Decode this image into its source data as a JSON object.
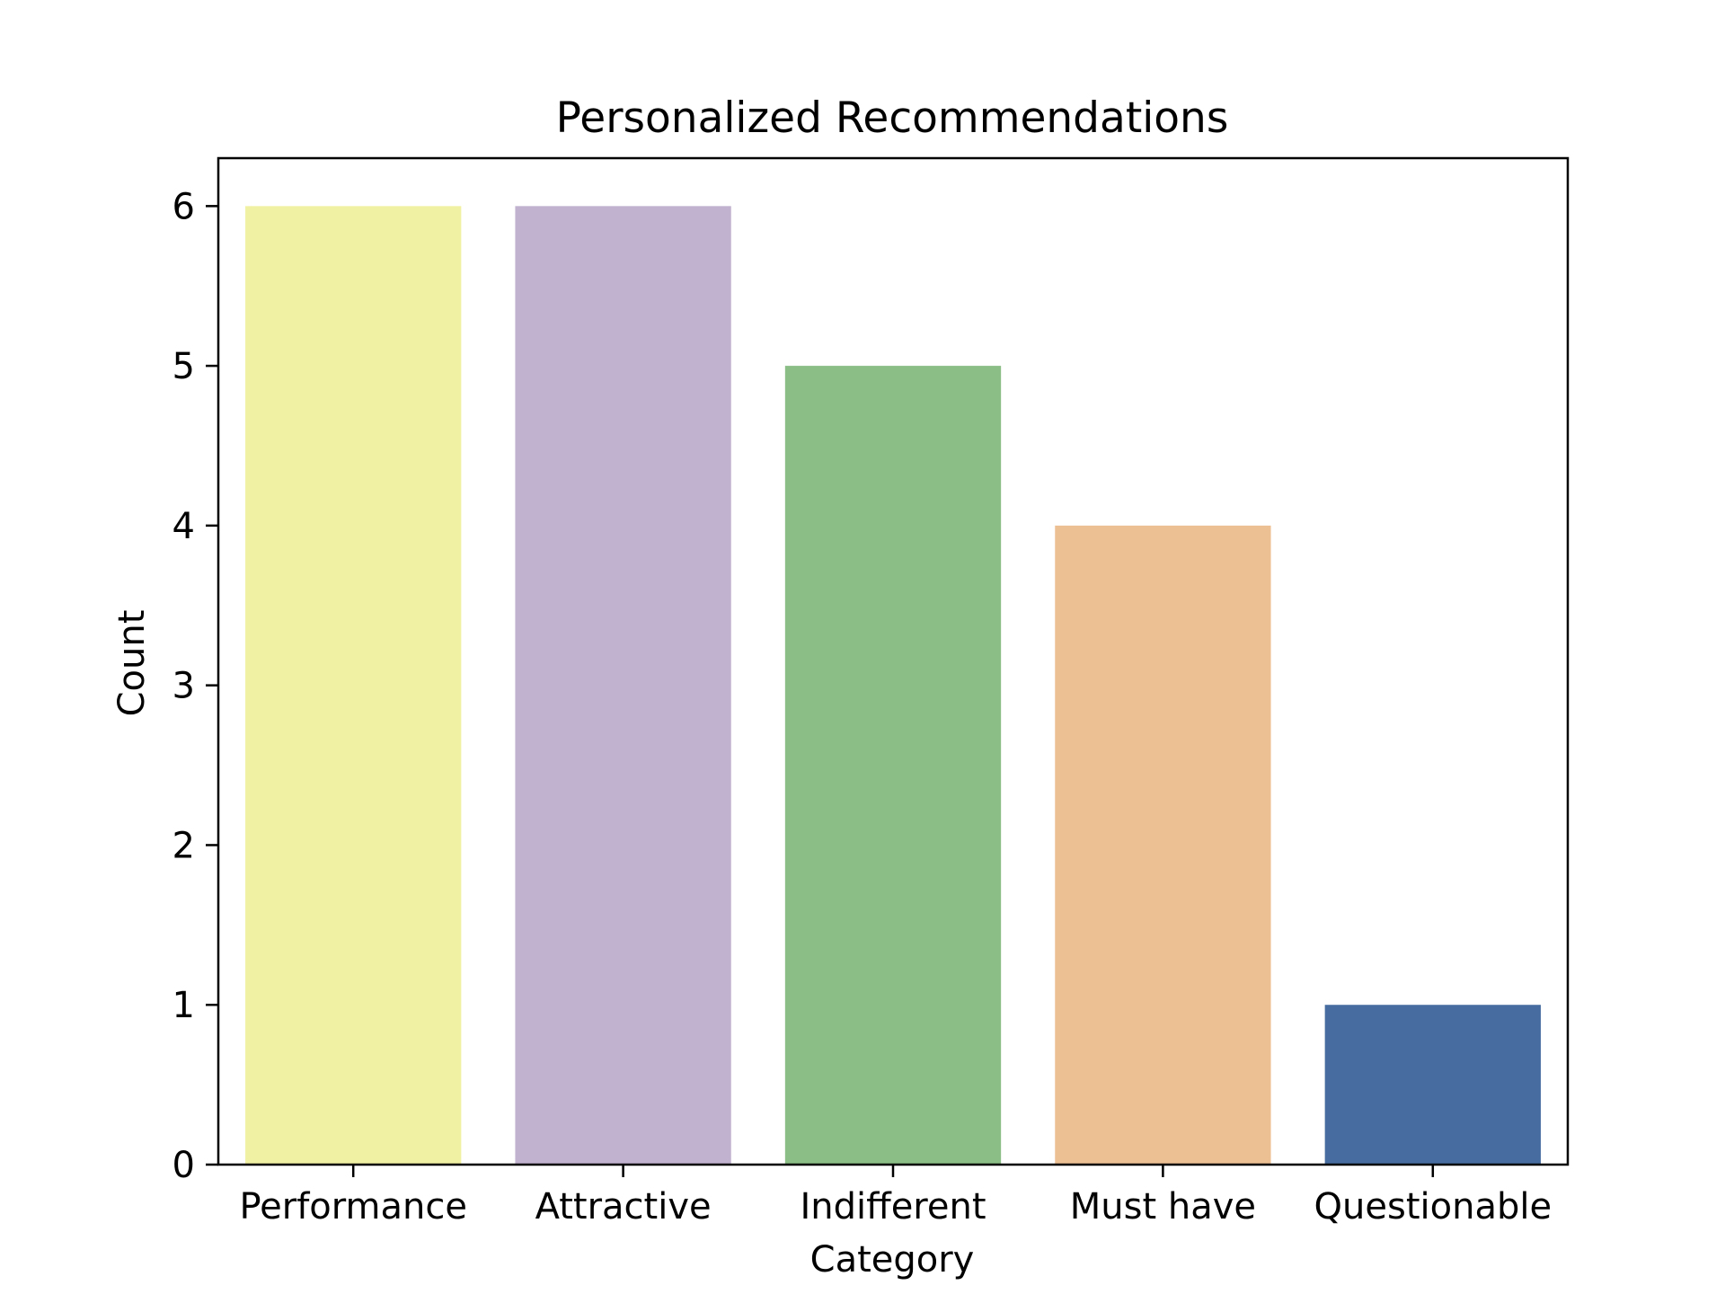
{
  "chart_data": {
    "type": "bar",
    "title": "Personalized Recommendations",
    "xlabel": "Category",
    "ylabel": "Count",
    "categories": [
      "Performance",
      "Attractive",
      "Indifferent",
      "Must have",
      "Questionable"
    ],
    "values": [
      6,
      6,
      5,
      4,
      1
    ],
    "colors": [
      "#f1f1a4",
      "#c1b2cf",
      "#8abe86",
      "#edc094",
      "#476da0"
    ],
    "ylim": [
      0,
      6.3
    ],
    "yticks": [
      0,
      1,
      2,
      3,
      4,
      5,
      6
    ],
    "grid": false,
    "legend": "none"
  }
}
